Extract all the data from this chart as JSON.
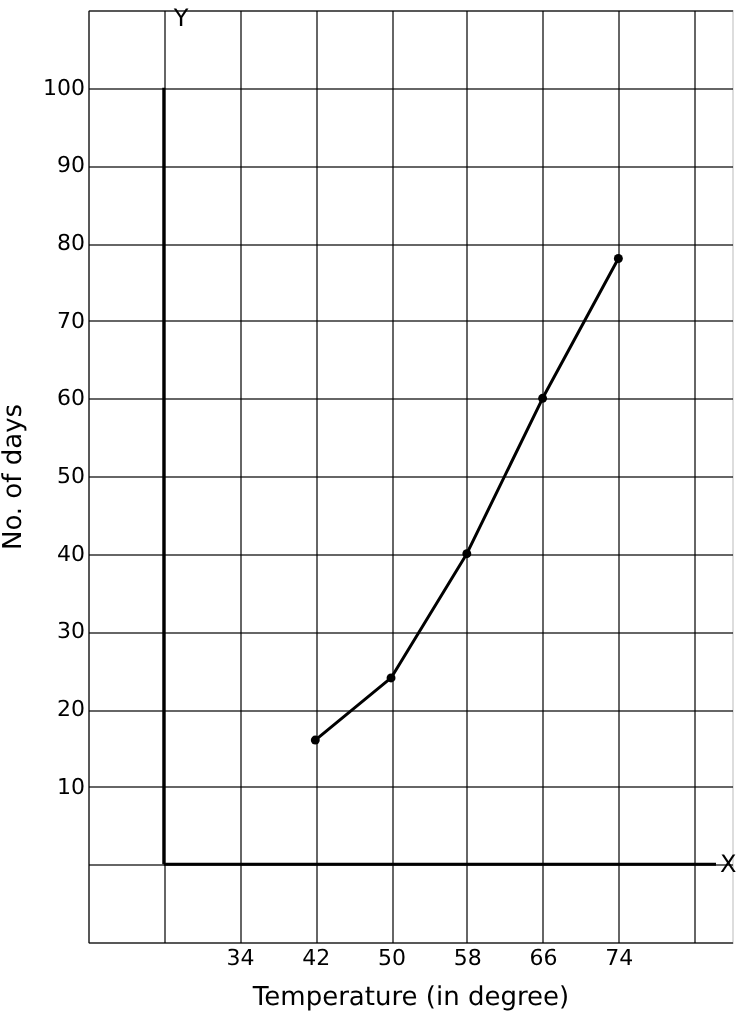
{
  "chart_data": {
    "type": "line",
    "xlabel": "Temperature (in degree)",
    "ylabel": "No. of days",
    "annotations": [
      "Y",
      "X"
    ],
    "x": [
      42,
      50,
      58,
      66,
      74
    ],
    "series": [
      {
        "color": "#000000",
        "values": [
          16,
          24,
          40,
          60,
          78
        ]
      }
    ],
    "xlim": [
      18,
      86
    ],
    "xticks": [
      {
        "value": 18,
        "label": null
      },
      {
        "value": 26,
        "label": null
      },
      34,
      42,
      50,
      58,
      66,
      74,
      {
        "value": 82,
        "label": null
      }
    ],
    "ylim": [
      -10,
      110
    ],
    "yticks": [
      {
        "value": -10,
        "label": null
      },
      {
        "value": 0,
        "label": null
      },
      10,
      20,
      30,
      40,
      50,
      60,
      70,
      80,
      90,
      100,
      {
        "value": 110,
        "label": null
      }
    ],
    "grid": true,
    "marker": "circle",
    "line_style": "solid"
  }
}
